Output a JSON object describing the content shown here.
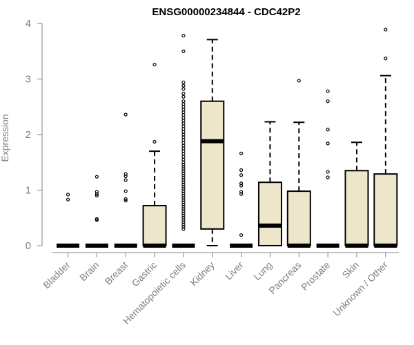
{
  "chart_data": {
    "type": "box",
    "title": "ENSG00000234844 - CDC42P2",
    "ylabel": "Expression",
    "xlabel": "",
    "ylim": [
      0,
      4
    ],
    "yticks": [
      0,
      1,
      2,
      3,
      4
    ],
    "box_fill": "#ede6cb",
    "categories": [
      "Bladder",
      "Brain",
      "Breast",
      "Gastric",
      "Hematopoietic cells",
      "Kidney",
      "Liver",
      "Lung",
      "Pancreas",
      "Prostate",
      "Skin",
      "Unknown / Other"
    ],
    "boxes": [
      {
        "q1": 0,
        "median": 0,
        "q3": 0,
        "whisker_low": 0,
        "whisker_high": 0,
        "outliers": [
          0.92,
          0.83
        ]
      },
      {
        "q1": 0,
        "median": 0,
        "q3": 0,
        "whisker_low": 0,
        "whisker_high": 0,
        "outliers": [
          1.24,
          0.97,
          0.93,
          0.9,
          0.48,
          0.46
        ]
      },
      {
        "q1": 0,
        "median": 0,
        "q3": 0,
        "whisker_low": 0,
        "whisker_high": 0,
        "outliers": [
          2.36,
          1.29,
          1.25,
          1.18,
          0.98,
          0.84,
          0.81
        ]
      },
      {
        "q1": 0,
        "median": 0,
        "q3": 0.72,
        "whisker_low": 0,
        "whisker_high": 1.7,
        "outliers": [
          3.26,
          1.87
        ]
      },
      {
        "q1": 0,
        "median": 0,
        "q3": 0,
        "whisker_low": 0,
        "whisker_high": 0,
        "outliers": [
          3.78,
          3.5,
          2.94,
          2.88,
          2.82,
          2.74,
          2.68,
          2.6,
          2.55,
          2.5,
          2.45,
          2.4,
          2.35,
          2.3,
          2.25,
          2.2,
          2.15,
          2.1,
          2.05,
          2.0,
          1.95,
          1.9,
          1.85,
          1.8,
          1.75,
          1.7,
          1.65,
          1.6,
          1.55,
          1.5,
          1.46,
          1.42,
          1.38,
          1.34,
          1.3,
          1.26,
          1.22,
          1.18,
          1.14,
          1.1,
          1.06,
          1.02,
          0.98,
          0.94,
          0.9,
          0.86,
          0.82,
          0.78,
          0.74,
          0.7,
          0.66,
          0.62,
          0.58,
          0.54,
          0.5,
          0.46,
          0.42,
          0.38,
          0.34,
          0.3
        ]
      },
      {
        "q1": 0.3,
        "median": 1.88,
        "q3": 2.6,
        "whisker_low": 0,
        "whisker_high": 3.71,
        "outliers": []
      },
      {
        "q1": 0,
        "median": 0,
        "q3": 0,
        "whisker_low": 0,
        "whisker_high": 0,
        "outliers": [
          1.66,
          1.36,
          1.27,
          1.12,
          1.08,
          0.97,
          0.93,
          0.19
        ]
      },
      {
        "q1": 0,
        "median": 0.36,
        "q3": 1.14,
        "whisker_low": 0,
        "whisker_high": 2.23,
        "outliers": []
      },
      {
        "q1": 0,
        "median": 0,
        "q3": 0.98,
        "whisker_low": 0,
        "whisker_high": 2.22,
        "outliers": [
          2.97
        ]
      },
      {
        "q1": 0,
        "median": 0,
        "q3": 0,
        "whisker_low": 0,
        "whisker_high": 0,
        "outliers": [
          2.78,
          2.6,
          2.09,
          1.84,
          1.33,
          1.23
        ]
      },
      {
        "q1": 0,
        "median": 0,
        "q3": 1.35,
        "whisker_low": 0,
        "whisker_high": 1.86,
        "outliers": []
      },
      {
        "q1": 0,
        "median": 0,
        "q3": 1.29,
        "whisker_low": 0,
        "whisker_high": 3.06,
        "outliers": [
          3.89,
          3.37
        ]
      }
    ]
  }
}
